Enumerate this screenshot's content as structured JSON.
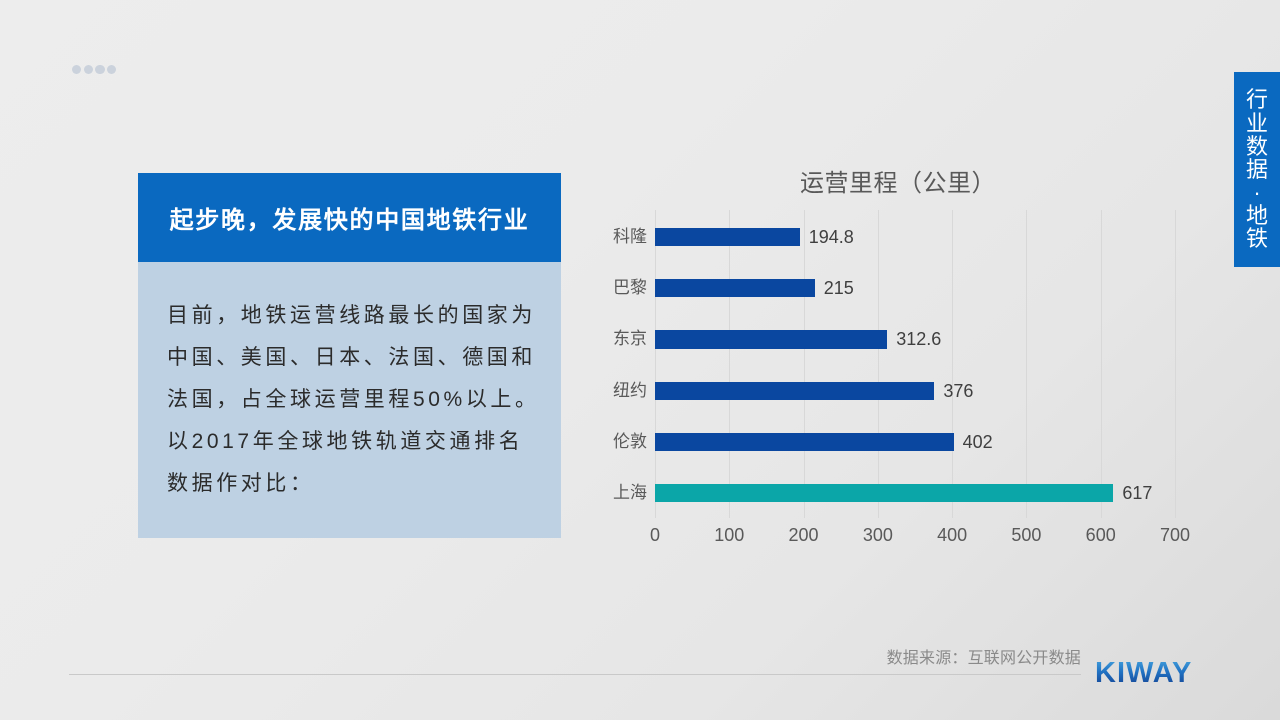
{
  "slide": {
    "decoration_dots": {
      "count": 4,
      "color": "#CBD2DC"
    },
    "side_tab": {
      "label": "行业数据·地铁",
      "background": "#0A69C0",
      "text_color": "#FFFFFF"
    },
    "title_block": {
      "title": "起步晚，发展快的中国地铁行业",
      "title_background": "#0A69C0",
      "title_color": "#FFFFFF",
      "body_background": "#BED1E3",
      "body_lines": [
        "目前，地铁运营线路最长的国家为",
        "中国、美国、日本、法国、德国和",
        "法国，占全球运营里程50%以上。",
        "以2017年全球地铁轨道交通排名",
        "数据作对比："
      ]
    },
    "footer": {
      "source": "数据来源：互联网公开数据",
      "logo": "KIWAY"
    }
  },
  "chart_data": {
    "type": "bar",
    "orientation": "horizontal",
    "title": "运营里程（公里）",
    "categories": [
      "科隆",
      "巴黎",
      "东京",
      "纽约",
      "伦敦",
      "上海"
    ],
    "values": [
      194.8,
      215,
      312.6,
      376,
      402,
      617
    ],
    "value_labels": [
      "194.8",
      "215",
      "312.6",
      "376",
      "402",
      "617"
    ],
    "xlim": [
      0,
      700
    ],
    "x_ticks": [
      0,
      100,
      200,
      300,
      400,
      500,
      600,
      700
    ],
    "grid": true,
    "legend": false,
    "bar_color": "#0A47A0",
    "highlight_color": "#0BA6A8",
    "highlight_index": 5,
    "xlabel": "",
    "ylabel": ""
  }
}
